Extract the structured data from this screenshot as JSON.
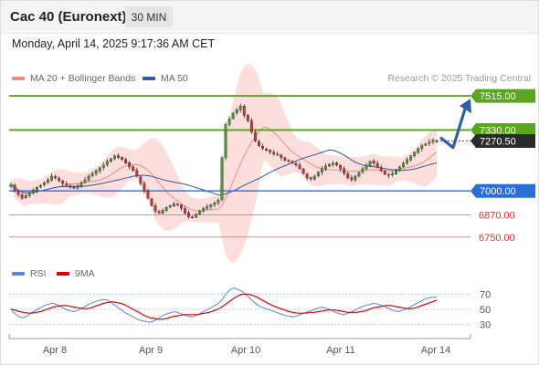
{
  "header": {
    "title": "Cac 40 (Euronext)",
    "timeframe": "30 MIN",
    "timestamp": "Monday, April 14, 2025 9:17:36 AM CET"
  },
  "legend_top": {
    "items": [
      {
        "label": "MA 20 + Bollinger Bands",
        "color": "#f28b82"
      },
      {
        "label": "MA 50",
        "color": "#2e5c99"
      }
    ],
    "credit": "Research © 2025 Trading Central"
  },
  "legend_bottom": {
    "items": [
      {
        "label": "RSI",
        "color": "#5a86d6"
      },
      {
        "label": "9MA",
        "color": "#e00000"
      }
    ]
  },
  "colors": {
    "green_level": "#5aa61f",
    "blue_level": "#2a6fd6",
    "red_level": "#f08080",
    "dark_label": "#2b2b2b",
    "candle_up": "#4e9a2a",
    "candle_down": "#d23030",
    "band_fill": "#fbd3d0",
    "ma20": "#f28b82",
    "ma50": "#2e5c99",
    "arrow": "#2f5fa0"
  },
  "chart_data": [
    {
      "type": "candlestick",
      "title": "Cac 40 (Euronext)",
      "ylim": [
        6640,
        7560
      ],
      "x_ticks": [
        "Apr 8",
        "Apr 9",
        "Apr 10",
        "Apr 11",
        "Apr 14"
      ],
      "price_levels": [
        {
          "label": "7515.00",
          "value": 7515,
          "style": "resistance",
          "color": "#5aa61f"
        },
        {
          "label": "7330.00",
          "value": 7330,
          "style": "pivot",
          "color": "#5aa61f"
        },
        {
          "label": "7270.50",
          "value": 7270.5,
          "style": "last",
          "color": "#2b2b2b"
        },
        {
          "label": "7000.00",
          "value": 7000,
          "style": "support",
          "color": "#2a6fd6"
        },
        {
          "label": "6870.00",
          "value": 6870,
          "style": "support",
          "color": "#f08080"
        },
        {
          "label": "6750.00",
          "value": 6750,
          "style": "support",
          "color": "#f08080"
        }
      ],
      "series": [
        {
          "name": "MA 20 + Bollinger Bands"
        },
        {
          "name": "MA 50"
        }
      ],
      "close": [
        7035,
        7000,
        6980,
        6960,
        6975,
        6990,
        7005,
        7020,
        7030,
        7045,
        7060,
        7080,
        7070,
        7055,
        7040,
        7030,
        7020,
        7015,
        7030,
        7045,
        7060,
        7080,
        7095,
        7110,
        7125,
        7140,
        7160,
        7175,
        7190,
        7180,
        7170,
        7150,
        7130,
        7110,
        7080,
        7040,
        7000,
        6960,
        6920,
        6890,
        6880,
        6895,
        6910,
        6920,
        6930,
        6925,
        6905,
        6880,
        6860,
        6855,
        6875,
        6890,
        6905,
        6915,
        6925,
        6935,
        6950,
        7180,
        7360,
        7390,
        7420,
        7440,
        7460,
        7410,
        7380,
        7320,
        7270,
        7245,
        7230,
        7220,
        7210,
        7200,
        7195,
        7180,
        7165,
        7160,
        7150,
        7140,
        7120,
        7095,
        7070,
        7065,
        7080,
        7100,
        7120,
        7135,
        7145,
        7150,
        7140,
        7120,
        7095,
        7070,
        7060,
        7080,
        7100,
        7120,
        7140,
        7160,
        7150,
        7130,
        7110,
        7090,
        7085,
        7095,
        7110,
        7130,
        7150,
        7170,
        7190,
        7210,
        7230,
        7245,
        7255,
        7265,
        7275,
        7270
      ],
      "volume_scale": "none"
    },
    {
      "type": "line",
      "title": "",
      "ylim": [
        20,
        80
      ],
      "y_ticks": [
        70,
        50,
        30
      ],
      "series": [
        {
          "name": "RSI",
          "values": [
            50,
            44,
            40,
            39,
            42,
            46,
            49,
            52,
            55,
            57,
            58,
            56,
            53,
            50,
            48,
            47,
            49,
            52,
            55,
            58,
            60,
            62,
            63,
            62,
            58,
            54,
            50,
            46,
            43,
            40,
            37,
            35,
            34,
            33,
            35,
            38,
            42,
            44,
            46,
            47,
            45,
            43,
            41,
            40,
            42,
            45,
            48,
            51,
            54,
            57,
            62,
            70,
            76,
            78,
            76,
            73,
            68,
            63,
            58,
            54,
            52,
            50,
            48,
            46,
            44,
            42,
            41,
            40,
            42,
            44,
            46,
            48,
            50,
            52,
            53,
            51,
            49,
            46,
            44,
            43,
            45,
            47,
            50,
            53,
            55,
            56,
            58,
            57,
            55,
            53,
            50,
            48,
            47,
            49,
            51,
            54,
            57,
            60,
            63,
            65,
            66,
            66
          ]
        },
        {
          "name": "9MA",
          "values": [
            50,
            49,
            47,
            46,
            45,
            45,
            46,
            47,
            49,
            51,
            53,
            54,
            55,
            55,
            54,
            53,
            52,
            51,
            51,
            52,
            54,
            56,
            58,
            59,
            60,
            59,
            58,
            56,
            53,
            50,
            47,
            44,
            41,
            39,
            38,
            37,
            37,
            38,
            40,
            41,
            42,
            43,
            43,
            43,
            43,
            44,
            45,
            46,
            48,
            50,
            53,
            57,
            61,
            65,
            68,
            70,
            70,
            69,
            67,
            64,
            61,
            58,
            55,
            53,
            51,
            49,
            47,
            46,
            45,
            45,
            45,
            46,
            46,
            47,
            48,
            49,
            49,
            49,
            48,
            47,
            46,
            46,
            46,
            47,
            48,
            50,
            52,
            53,
            54,
            55,
            55,
            54,
            53,
            52,
            51,
            51,
            52,
            54,
            56,
            58,
            60,
            62
          ]
        }
      ],
      "guide_levels": [
        70,
        50,
        30
      ]
    }
  ]
}
